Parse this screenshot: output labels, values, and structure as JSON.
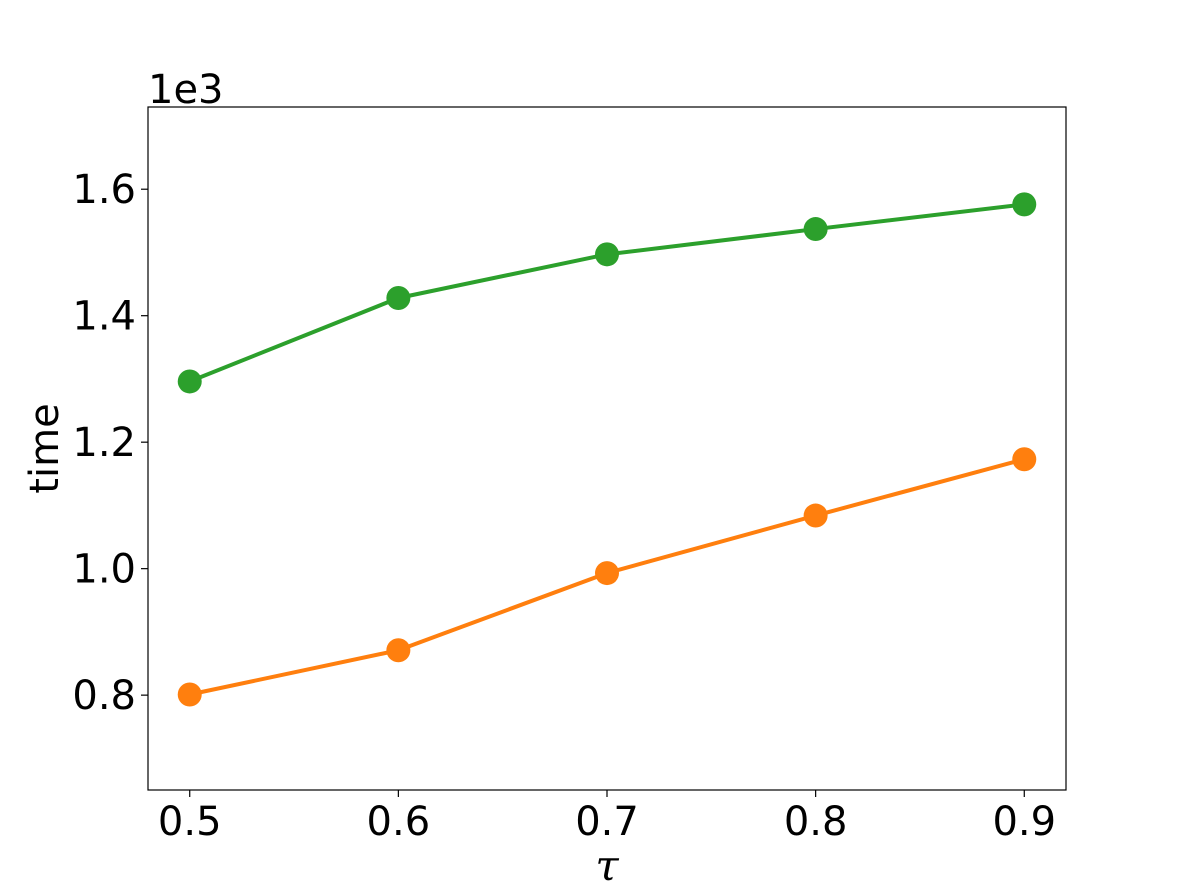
{
  "chart_data": {
    "type": "line",
    "title": "",
    "xlabel": "τ",
    "ylabel": "time",
    "y_offset_label": "1e3",
    "x": [
      0.5,
      0.6,
      0.7,
      0.8,
      0.9
    ],
    "xlim": [
      0.48,
      0.92
    ],
    "ylim": [
      0.65,
      1.73
    ],
    "xticks": [
      0.5,
      0.6,
      0.7,
      0.8,
      0.9
    ],
    "xtick_labels": [
      "0.5",
      "0.6",
      "0.7",
      "0.8",
      "0.9"
    ],
    "yticks": [
      0.8,
      1.0,
      1.2,
      1.4,
      1.6
    ],
    "ytick_labels": [
      "0.8",
      "1.0",
      "1.2",
      "1.4",
      "1.6"
    ],
    "grid": false,
    "series": [
      {
        "values": [
          1.296,
          1.428,
          1.497,
          1.537,
          1.576
        ],
        "color": "#2ca02c",
        "marker": "circle"
      },
      {
        "values": [
          0.801,
          0.871,
          0.993,
          1.084,
          1.173
        ],
        "color": "#ff7f0e",
        "marker": "circle"
      }
    ]
  }
}
